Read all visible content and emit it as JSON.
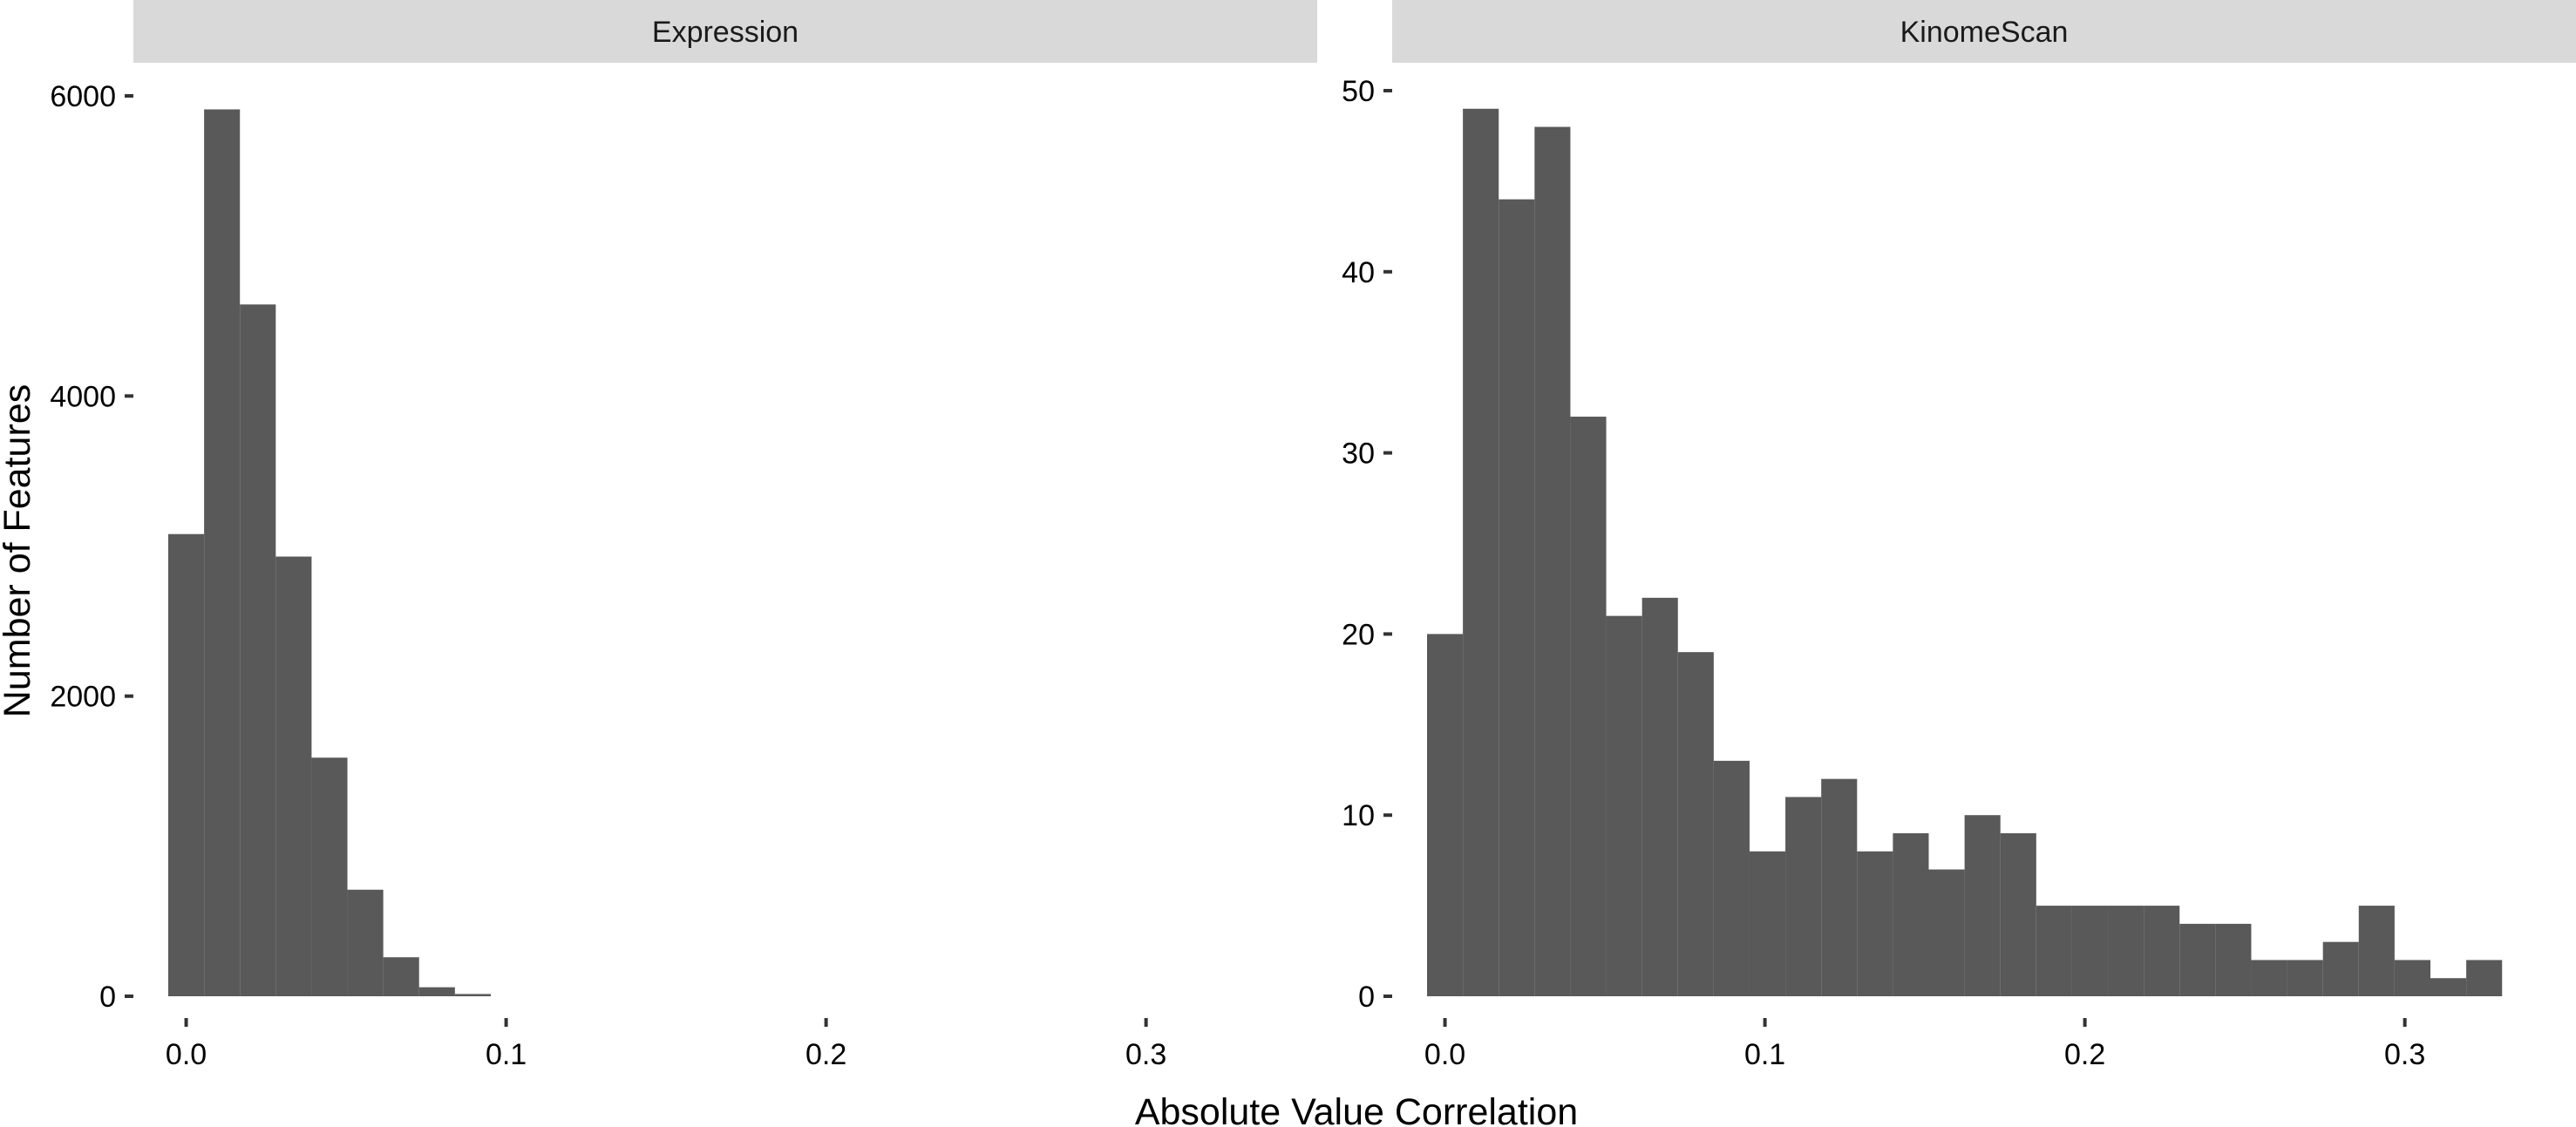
{
  "chart_data": {
    "type": "bar",
    "title": "",
    "xlabel": "Absolute Value Correlation",
    "ylabel": "Number of Features",
    "colors": {
      "bar": "#595959",
      "strip": "#d9d9d9",
      "background": "#ffffff"
    },
    "grid": false,
    "legend": "none",
    "panels": [
      {
        "name": "Expression",
        "xlim": [
          -0.0165,
          0.3535
        ],
        "ylim": [
          0,
          6000
        ],
        "x_ticks": [
          0.0,
          0.1,
          0.2,
          0.3
        ],
        "x_tick_labels": [
          "0.0",
          "0.1",
          "0.2",
          "0.3"
        ],
        "y_ticks": [
          0,
          2000,
          4000,
          6000
        ],
        "y_tick_labels": [
          "0",
          "2000",
          "4000",
          "6000"
        ],
        "bin_width": 0.0112,
        "bin_starts": [
          -0.0056,
          0.0056,
          0.0168,
          0.028,
          0.0392,
          0.0504,
          0.0616,
          0.0728,
          0.084
        ],
        "values": [
          3080,
          5910,
          4610,
          2930,
          1590,
          710,
          260,
          60,
          15
        ]
      },
      {
        "name": "KinomeScan",
        "xlim": [
          -0.0165,
          0.3535
        ],
        "ylim": [
          0,
          50
        ],
        "x_ticks": [
          0.0,
          0.1,
          0.2,
          0.3
        ],
        "x_tick_labels": [
          "0.0",
          "0.1",
          "0.2",
          "0.3"
        ],
        "y_ticks": [
          0,
          10,
          20,
          30,
          40,
          50
        ],
        "y_tick_labels": [
          "0",
          "10",
          "20",
          "30",
          "40",
          "50"
        ],
        "bin_width": 0.0112,
        "bin_starts": [
          -0.0056,
          0.0056,
          0.0168,
          0.028,
          0.0392,
          0.0504,
          0.0616,
          0.0728,
          0.084,
          0.0952,
          0.1064,
          0.1176,
          0.1288,
          0.14,
          0.1512,
          0.1624,
          0.1736,
          0.1848,
          0.196,
          0.2072,
          0.2184,
          0.2296,
          0.2408,
          0.252,
          0.2632,
          0.2744,
          0.2856,
          0.2968,
          0.308,
          0.3192
        ],
        "values": [
          20,
          49,
          44,
          48,
          32,
          21,
          22,
          19,
          13,
          8,
          11,
          12,
          8,
          9,
          7,
          10,
          9,
          5,
          5,
          5,
          5,
          4,
          4,
          2,
          2,
          3,
          5,
          2,
          1,
          2
        ]
      }
    ]
  }
}
